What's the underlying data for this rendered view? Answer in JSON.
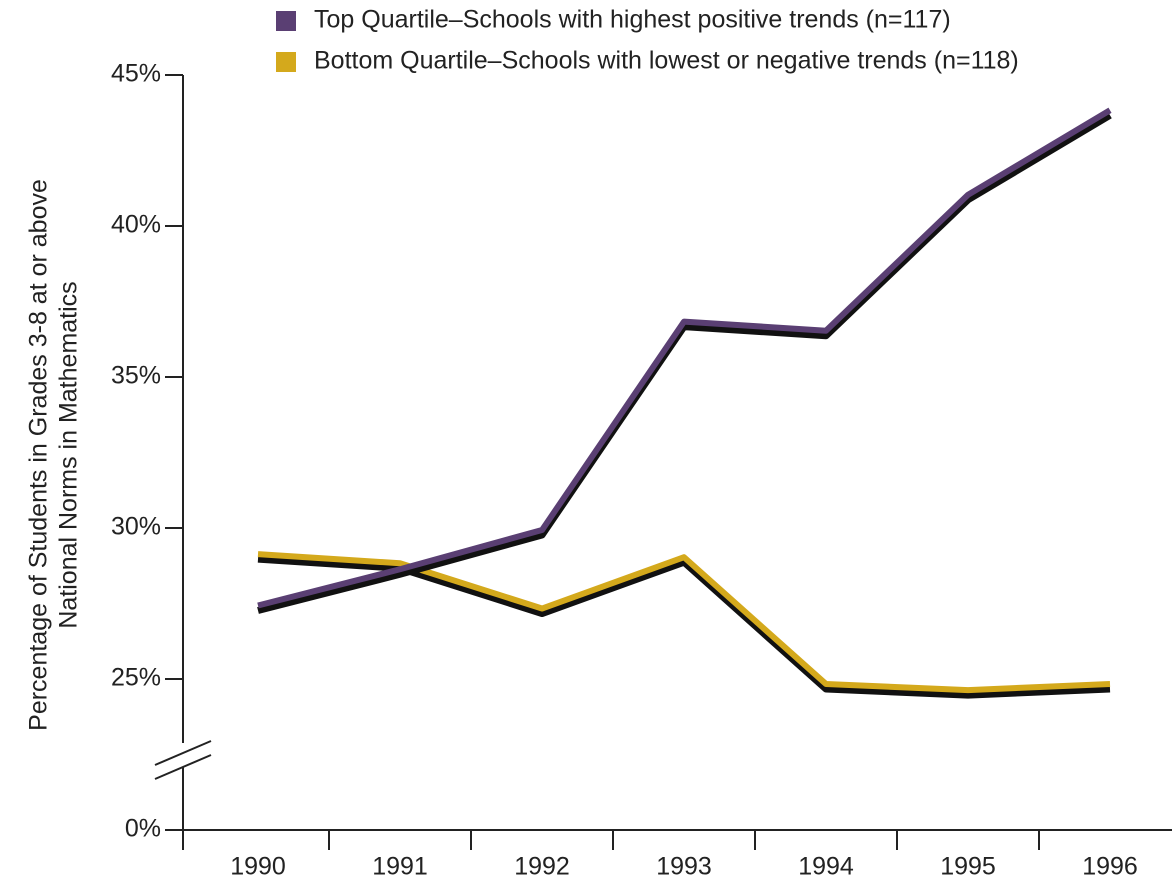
{
  "chart_data": {
    "type": "line",
    "ylabel": [
      "Percentage of Students in Grades 3-8 at or above",
      "National Norms in Mathematics"
    ],
    "categories": [
      "1990",
      "1991",
      "1992",
      "1993",
      "1994",
      "1995",
      "1996"
    ],
    "series": [
      {
        "name": "Top Quartile–Schools with highest positive trends (n=117)",
        "color": "#5a3f73",
        "values": [
          27.4,
          28.6,
          29.9,
          36.8,
          36.5,
          41.0,
          43.8
        ]
      },
      {
        "name": "Bottom Quartile–Schools with lowest or negative trends (n=118)",
        "color": "#d4a91c",
        "values": [
          29.1,
          28.8,
          27.3,
          29.0,
          24.8,
          24.6,
          24.8
        ]
      }
    ],
    "ylim": [
      0,
      45
    ],
    "axis_break": [
      0,
      20
    ],
    "yticks": [
      {
        "value": 0,
        "label": "0%"
      },
      {
        "value": 25,
        "label": "25%"
      },
      {
        "value": 30,
        "label": "30%"
      },
      {
        "value": 35,
        "label": "35%"
      },
      {
        "value": 40,
        "label": "40%"
      },
      {
        "value": 45,
        "label": "45%"
      }
    ],
    "legend": "top"
  }
}
